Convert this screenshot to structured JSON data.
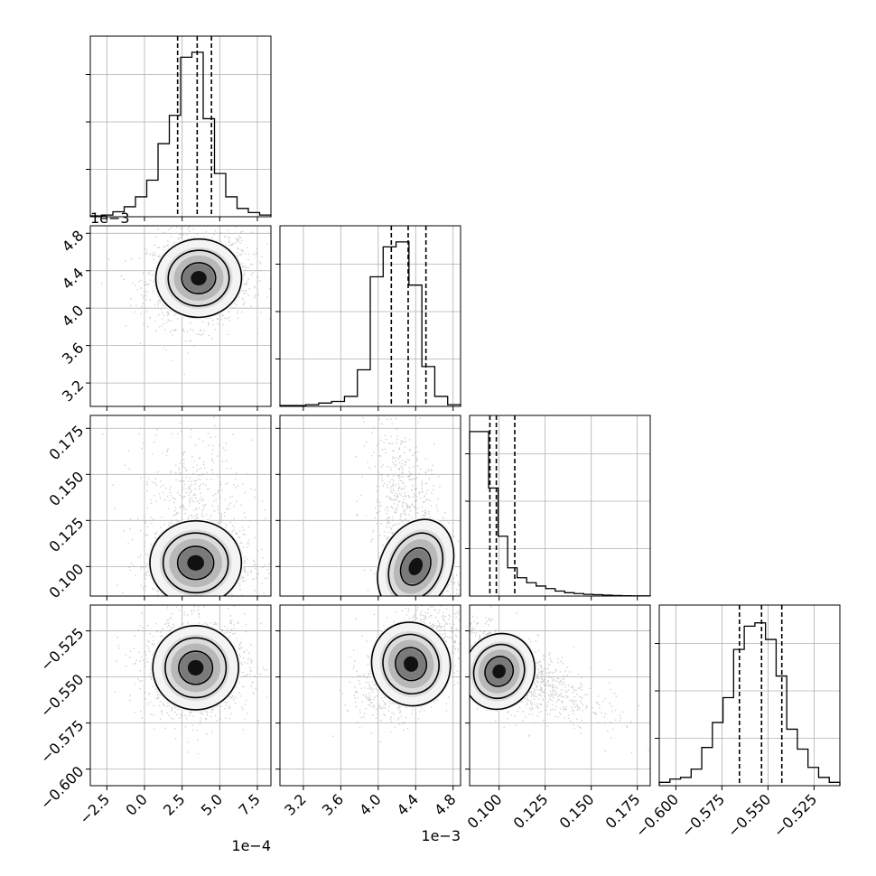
{
  "chart_data": {
    "type": "corner",
    "params": [
      {
        "range": [
          -3.6,
          8.4
        ],
        "ticks": [
          -2.5,
          0.0,
          2.5,
          5.0,
          7.5
        ],
        "tick_labels": [
          "−2.5",
          "0.0",
          "2.5",
          "5.0",
          "7.5"
        ],
        "offset_label": "1e−4",
        "quantiles": [
          2.2,
          3.5,
          4.45
        ],
        "hist": [
          0.005,
          0.01,
          0.03,
          0.06,
          0.12,
          0.22,
          0.44,
          0.61,
          0.96,
          0.99,
          0.59,
          0.26,
          0.12,
          0.05,
          0.025,
          0.01
        ]
      },
      {
        "range": [
          2.95,
          4.88
        ],
        "ticks": [
          3.2,
          3.6,
          4.0,
          4.4,
          4.8
        ],
        "tick_labels": [
          "3.2",
          "3.6",
          "4.0",
          "4.4",
          "4.8"
        ],
        "offset_label": "1e−3",
        "quantiles": [
          4.14,
          4.32,
          4.51
        ],
        "hist": [
          0.005,
          0.005,
          0.01,
          0.02,
          0.03,
          0.06,
          0.22,
          0.78,
          0.96,
          0.99,
          0.73,
          0.24,
          0.06,
          0.01
        ]
      },
      {
        "range": [
          0.084,
          0.182
        ],
        "ticks": [
          0.1,
          0.125,
          0.15,
          0.175
        ],
        "tick_labels": [
          "0.100",
          "0.125",
          "0.150",
          "0.175"
        ],
        "offset_label": "",
        "quantiles": [
          0.095,
          0.0985,
          0.1085
        ],
        "hist": [
          0.99,
          0.99,
          0.65,
          0.36,
          0.17,
          0.11,
          0.08,
          0.06,
          0.045,
          0.03,
          0.02,
          0.015,
          0.01,
          0.008,
          0.005,
          0.003,
          0.002,
          0.001,
          0.001
        ]
      },
      {
        "range": [
          -0.609,
          -0.511
        ],
        "ticks": [
          -0.6,
          -0.575,
          -0.55,
          -0.525
        ],
        "tick_labels": [
          "−0.600",
          "−0.575",
          "−0.550",
          "−0.525"
        ],
        "offset_label": "",
        "quantiles": [
          -0.5655,
          -0.5535,
          -0.5425
        ],
        "hist": [
          0.02,
          0.04,
          0.05,
          0.1,
          0.23,
          0.38,
          0.53,
          0.82,
          0.96,
          0.98,
          0.88,
          0.66,
          0.34,
          0.22,
          0.11,
          0.05,
          0.02
        ]
      }
    ],
    "pairs": [
      {
        "x": 0,
        "y": 1,
        "center": [
          3.6,
          4.32
        ],
        "spread": [
          1.5,
          0.22
        ],
        "rho": 0.1
      },
      {
        "x": 0,
        "y": 2,
        "center": [
          3.4,
          0.102
        ],
        "spread": [
          1.6,
          0.012
        ],
        "rho": 0.0,
        "skew_y": 1
      },
      {
        "x": 1,
        "y": 2,
        "center": [
          4.4,
          0.1
        ],
        "spread": [
          0.2,
          0.014
        ],
        "rho": -0.6,
        "skew_y": 1
      },
      {
        "x": 0,
        "y": 3,
        "center": [
          3.4,
          -0.545
        ],
        "spread": [
          1.5,
          0.012
        ],
        "rho": 0.0
      },
      {
        "x": 1,
        "y": 3,
        "center": [
          4.35,
          -0.543
        ],
        "spread": [
          0.22,
          0.012
        ],
        "rho": 0.45
      },
      {
        "x": 2,
        "y": 3,
        "center": [
          0.1,
          -0.547
        ],
        "spread": [
          0.01,
          0.011
        ],
        "rho": -0.65,
        "skew_x": 1
      }
    ],
    "grid": true,
    "colors": {
      "line": "#000000",
      "scatter": "#aaaaaa",
      "grid": "#b0b0b0"
    }
  }
}
